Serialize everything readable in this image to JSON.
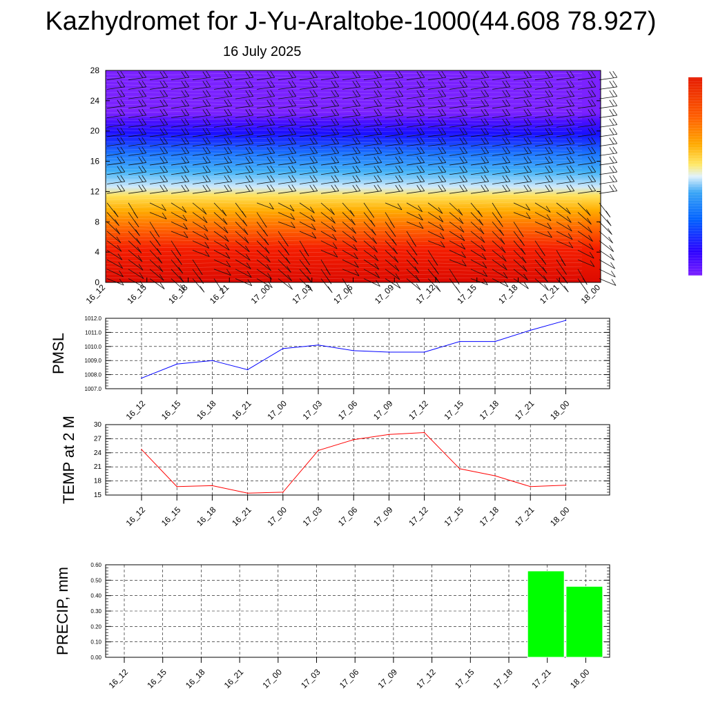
{
  "title": "Kazhydromet for J-Yu-Araltobe-1000(44.608 78.927)",
  "date": "16 July 2025",
  "colors": {
    "pmsl_line": "#0000ff",
    "temp_line": "#ff0000",
    "precip_bar": "#00ff00",
    "palette": [
      "#7b1fff",
      "#2b00ff",
      "#0060ff",
      "#3aa6f5",
      "#bfe4fa",
      "#ffe866",
      "#ffab00",
      "#ff5e00",
      "#e61a00"
    ]
  },
  "chart_data": [
    {
      "type": "heatmap",
      "title": "",
      "xlabel": "",
      "ylabel": "",
      "categories": [
        "16_12",
        "16_15",
        "16_18",
        "16_21",
        "17_00",
        "17_03",
        "17_06",
        "17_09",
        "17_12",
        "17_15",
        "17_18",
        "17_21",
        "18_00"
      ],
      "yticks": [
        "0",
        "4",
        "8",
        "12",
        "16",
        "20",
        "24",
        "28"
      ],
      "ylim": [
        0,
        28
      ],
      "colorbar": true,
      "field_description_levels": [
        {
          "level": 0,
          "band": "red"
        },
        {
          "level": 6,
          "band": "orange"
        },
        {
          "level": 11,
          "band": "yellow"
        },
        {
          "level": 14,
          "band": "light-blue"
        },
        {
          "level": 18,
          "band": "blue"
        },
        {
          "level": 21,
          "band": "dark-blue"
        },
        {
          "level": 24,
          "band": "violet"
        }
      ],
      "wind_barbs": true
    },
    {
      "type": "line",
      "ylabel": "PMSL",
      "categories": [
        "16_12",
        "16_15",
        "16_18",
        "16_21",
        "17_00",
        "17_03",
        "17_06",
        "17_09",
        "17_12",
        "17_15",
        "17_18",
        "17_21",
        "18_00"
      ],
      "yticks": [
        "1007.0",
        "1008.0",
        "1009.0",
        "1010.0",
        "1011.0",
        "1012.0"
      ],
      "ylim": [
        1007.0,
        1012.0
      ],
      "grid": true,
      "series": [
        {
          "values": [
            1007.75,
            1008.75,
            1009.0,
            1008.35,
            1009.85,
            1010.1,
            1009.7,
            1009.6,
            1009.6,
            1010.35,
            1010.35,
            1011.15,
            1011.85
          ]
        }
      ]
    },
    {
      "type": "line",
      "ylabel": "TEMP at 2 M",
      "categories": [
        "16_12",
        "16_15",
        "16_18",
        "16_21",
        "17_00",
        "17_03",
        "17_06",
        "17_09",
        "17_12",
        "17_15",
        "17_18",
        "17_21",
        "18_00"
      ],
      "yticks": [
        "15",
        "18",
        "21",
        "24",
        "27",
        "30"
      ],
      "ylim": [
        15,
        30
      ],
      "grid": true,
      "series": [
        {
          "values": [
            24.7,
            16.8,
            17.0,
            15.4,
            15.6,
            24.5,
            26.8,
            27.9,
            28.3,
            20.6,
            19.1,
            16.8,
            17.1
          ]
        }
      ]
    },
    {
      "type": "bar",
      "ylabel": "PRECIP, mm",
      "categories": [
        "16_12",
        "16_15",
        "16_18",
        "16_21",
        "17_00",
        "17_03",
        "17_06",
        "17_09",
        "17_12",
        "17_15",
        "17_18",
        "17_21",
        "18_00"
      ],
      "yticks": [
        "0.00",
        "0.10",
        "0.20",
        "0.30",
        "0.40",
        "0.50",
        "0.60"
      ],
      "ylim": [
        0,
        0.6
      ],
      "grid": true,
      "values": [
        0,
        0,
        0,
        0,
        0,
        0,
        0,
        0,
        0,
        0,
        0,
        0.56,
        0.46
      ]
    }
  ]
}
